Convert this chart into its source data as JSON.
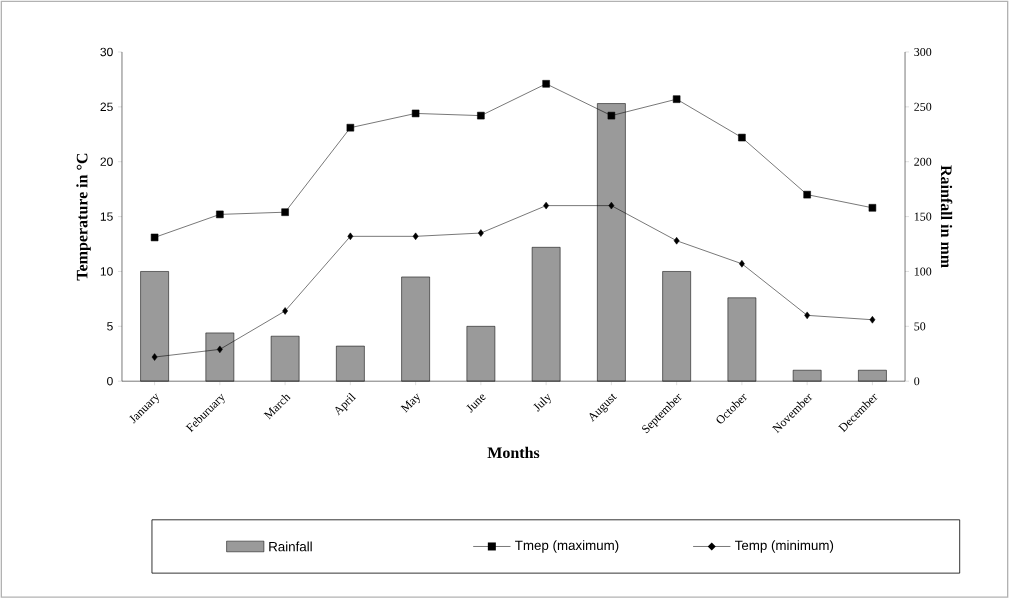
{
  "chart_data": {
    "type": "bar",
    "categories": [
      "January",
      "Feburuary",
      "March",
      "April",
      "May",
      "June",
      "July",
      "August",
      "September",
      "October",
      "November",
      "December"
    ],
    "xlabel": "Months",
    "ylabel": "Temperature in °C",
    "y2label": "Rainfall in mm",
    "series": [
      {
        "name": "Rainfall",
        "axis": "y2",
        "color": "#9a9a9a",
        "values": [
          100,
          44,
          41,
          32,
          95,
          50,
          122,
          253,
          100,
          76,
          10,
          10
        ]
      },
      {
        "name": "Tmep (maximum)",
        "type": "line",
        "color": "#000000",
        "marker": "square",
        "values": [
          13.1,
          15.2,
          15.4,
          23.1,
          24.4,
          24.2,
          27.1,
          24.2,
          25.7,
          22.2,
          17.0,
          15.8
        ]
      },
      {
        "name": "Temp (minimum)",
        "type": "line",
        "color": "#000000",
        "marker": "diamond",
        "values": [
          2.2,
          2.9,
          6.4,
          13.2,
          13.2,
          13.5,
          16.0,
          16.0,
          12.8,
          10.7,
          6.0,
          5.6
        ]
      }
    ],
    "ylim": [
      0,
      30
    ],
    "yticks": [
      0,
      5,
      10,
      15,
      20,
      25,
      30
    ],
    "y2lim": [
      0,
      300
    ],
    "y2ticks": [
      0,
      50,
      100,
      150,
      200,
      250,
      300
    ],
    "line_style": "solid",
    "legend": "bottom"
  }
}
